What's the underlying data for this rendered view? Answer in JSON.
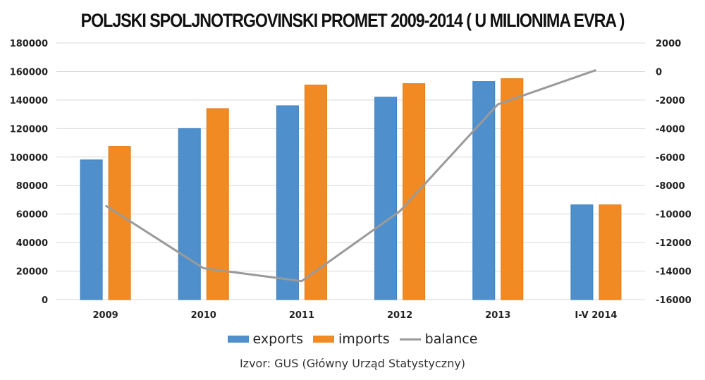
{
  "title": "POLJSKI SPOLJNOTRGOVINSKI PROMET 2009-2014 ( U MILIONIMA EVRA )",
  "source": "Izvor: GUS (Główny Urząd Statystyczny)",
  "colors": {
    "exports": "#4f8fcb",
    "imports": "#f28a24",
    "balance": "#9a9a9a",
    "grid": "#d9d9d9"
  },
  "legend": [
    {
      "key": "exports",
      "label": "exports",
      "kind": "bar"
    },
    {
      "key": "imports",
      "label": "imports",
      "kind": "bar"
    },
    {
      "key": "balance",
      "label": "balance",
      "kind": "line"
    }
  ],
  "chart_data": {
    "type": "bar",
    "title": "POLJSKI SPOLJNOTRGOVINSKI PROMET 2009-2014 ( U MILIONIMA EVRA )",
    "xlabel": "",
    "ylabel": "",
    "categories": [
      "2009",
      "2010",
      "2011",
      "2012",
      "2013",
      "I-V 2014"
    ],
    "series": [
      {
        "name": "exports",
        "type": "bar",
        "axis": "left",
        "values": [
          98000,
          120000,
          136000,
          142000,
          153000,
          66500
        ]
      },
      {
        "name": "imports",
        "type": "bar",
        "axis": "left",
        "values": [
          107500,
          134000,
          150500,
          151500,
          155000,
          66500
        ]
      },
      {
        "name": "balance",
        "type": "line",
        "axis": "right",
        "values": [
          -9400,
          -13800,
          -14700,
          -9800,
          -2300,
          100
        ]
      }
    ],
    "ylim": [
      0,
      180000
    ],
    "y_ticks": [
      "0",
      "20000",
      "40000",
      "60000",
      "80000",
      "100000",
      "120000",
      "140000",
      "160000",
      "180000"
    ],
    "y2lim": [
      -16000,
      2000
    ],
    "y2_ticks": [
      "-16000",
      "-14000",
      "-12000",
      "-10000",
      "-8000",
      "-6000",
      "-4000",
      "-2000",
      "0",
      "2000"
    ],
    "grid": true,
    "legend_position": "bottom"
  }
}
